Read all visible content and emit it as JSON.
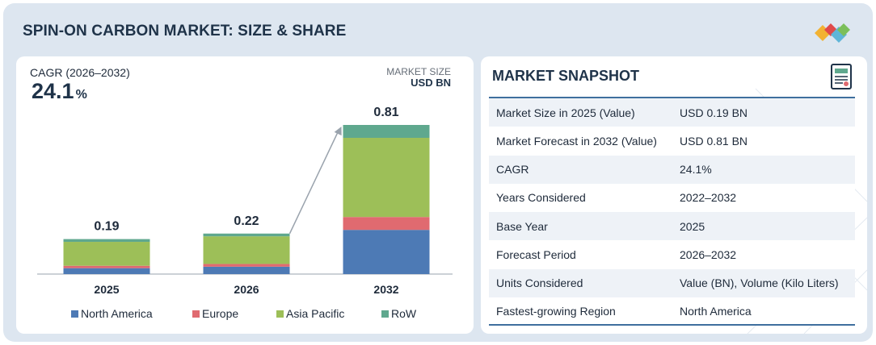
{
  "header": {
    "title": "SPIN-ON CARBON MARKET: SIZE & SHARE",
    "logo": "brand-diamond-logo"
  },
  "left": {
    "cagr_label": "CAGR (2026–2032)",
    "cagr_value": "24.1",
    "cagr_unit": "%",
    "market_size_label": "MARKET SIZE",
    "market_size_unit": "USD BN"
  },
  "chart_data": {
    "type": "bar",
    "stacked": true,
    "title": "",
    "xlabel": "",
    "ylabel": "USD BN",
    "categories": [
      "2025",
      "2026",
      "2032"
    ],
    "totals": [
      "0.19",
      "0.22",
      "0.81"
    ],
    "ylim": [
      0,
      0.81
    ],
    "grid": false,
    "legend_position": "bottom",
    "series": [
      {
        "name": "North America",
        "color": "#4d7ab5",
        "values": [
          0.032,
          0.04,
          0.24
        ]
      },
      {
        "name": "Europe",
        "color": "#e06a70",
        "values": [
          0.013,
          0.015,
          0.07
        ]
      },
      {
        "name": "Asia Pacific",
        "color": "#9dbf58",
        "values": [
          0.13,
          0.15,
          0.43
        ]
      },
      {
        "name": "RoW",
        "color": "#5fa88e",
        "values": [
          0.015,
          0.015,
          0.07
        ]
      }
    ],
    "annotation": "growth-arrow-2026-to-2032"
  },
  "snapshot": {
    "title": "MARKET SNAPSHOT",
    "icon": "report-document-icon",
    "rows": [
      {
        "key": "Market Size in 2025 (Value)",
        "value": "USD 0.19 BN"
      },
      {
        "key": "Market Forecast in 2032 (Value)",
        "value": "USD 0.81 BN"
      },
      {
        "key": "CAGR",
        "value": "24.1%"
      },
      {
        "key": "Years Considered",
        "value": "2022–2032"
      },
      {
        "key": "Base Year",
        "value": "2025"
      },
      {
        "key": "Forecast Period",
        "value": "2026–2032"
      },
      {
        "key": "Units Considered",
        "value": "Value (BN), Volume (Kilo Liters)"
      },
      {
        "key": "Fastest-growing Region",
        "value": "North America"
      }
    ]
  }
}
